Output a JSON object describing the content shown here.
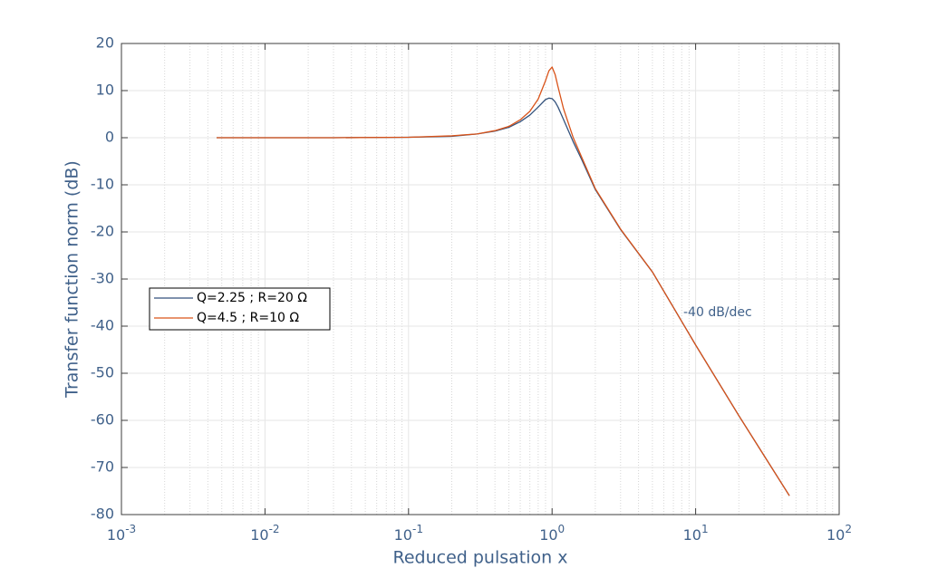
{
  "chart_data": {
    "type": "line",
    "xlabel": "Reduced pulsation x",
    "ylabel": "Transfer function norm (dB)",
    "xscale": "log",
    "x": [
      0.0046,
      0.01,
      0.03,
      0.1,
      0.2,
      0.3,
      0.4,
      0.5,
      0.6,
      0.7,
      0.8,
      0.9,
      0.95,
      1.0,
      1.05,
      1.1,
      1.2,
      1.4,
      1.6,
      2,
      3,
      5,
      10,
      20,
      45
    ],
    "series": [
      {
        "name": "Q=2.25 ; R=20 Ω",
        "color": "#33527c",
        "values": [
          0,
          0,
          0,
          0.1,
          0.3,
          0.8,
          1.4,
          2.2,
          3.4,
          4.8,
          6.5,
          8.1,
          8.4,
          8.3,
          7.6,
          6.5,
          3.9,
          -0.8,
          -4.5,
          -11,
          -19.5,
          -28.5,
          -44,
          -59,
          -76
        ]
      },
      {
        "name": "Q=4.5 ; R=10 Ω",
        "color": "#d95319",
        "values": [
          0,
          0,
          0,
          0.1,
          0.4,
          0.8,
          1.5,
          2.4,
          3.8,
          5.6,
          8.2,
          12.1,
          14.2,
          15,
          13.4,
          10.8,
          6.2,
          0.1,
          -4,
          -10.8,
          -19.4,
          -28.5,
          -44,
          -59,
          -76
        ]
      }
    ],
    "xlim": [
      0.001,
      100
    ],
    "xticks": [
      {
        "value": 0.001,
        "label": "10^-3"
      },
      {
        "value": 0.01,
        "label": "10^-2"
      },
      {
        "value": 0.1,
        "label": "10^-1"
      },
      {
        "value": 1,
        "label": "10^0"
      },
      {
        "value": 10,
        "label": "10^1"
      },
      {
        "value": 100,
        "label": "10^2"
      }
    ],
    "ylim": [
      -80,
      20
    ],
    "yticks": [
      -80,
      -70,
      -60,
      -50,
      -40,
      -30,
      -20,
      -10,
      0,
      10,
      20
    ],
    "grid": true,
    "minor_grid": true,
    "legend": "west",
    "annotation": "-40 dB/dec"
  }
}
